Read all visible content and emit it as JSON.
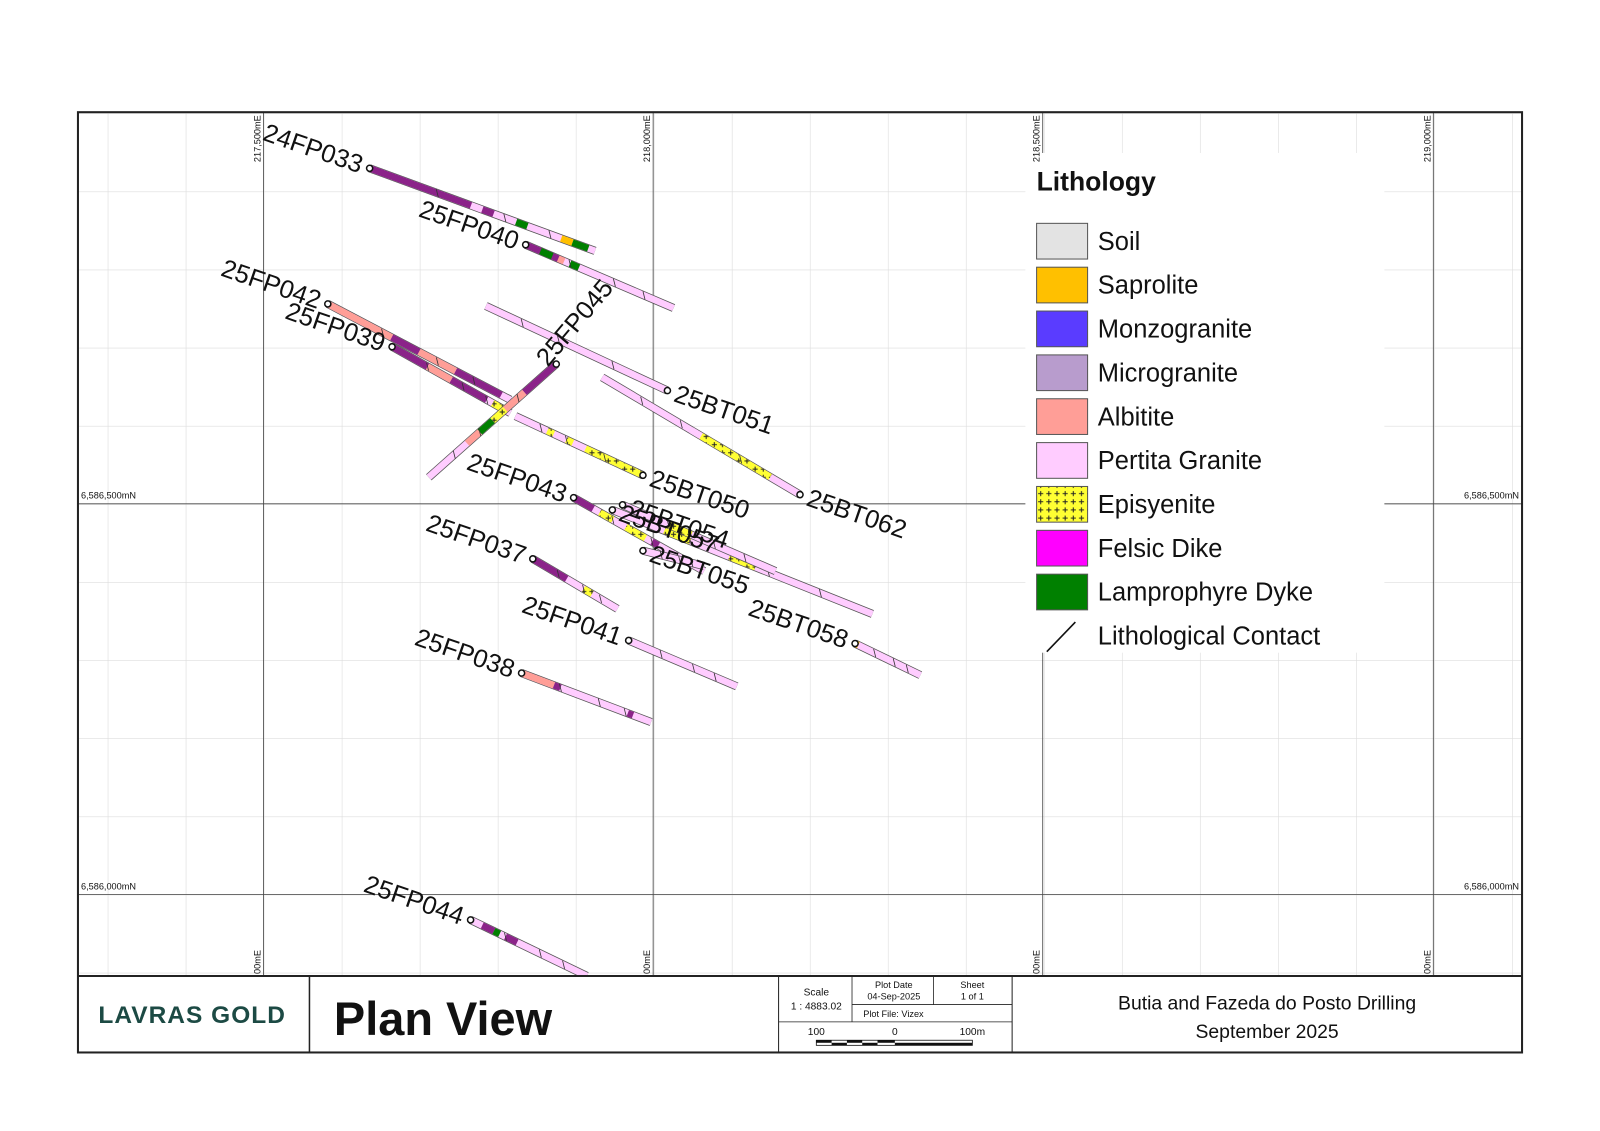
{
  "map": {
    "holes": [
      "24FP033",
      "25FP040",
      "25FP042",
      "25FP039",
      "25FP045",
      "25BT051",
      "25BT062",
      "25BT050",
      "25FP043",
      "25BT057",
      "25BT054",
      "25FP037",
      "25BT055",
      "25BT058",
      "25FP041",
      "25FP038",
      "25FP044"
    ],
    "grid_labels": {
      "easting_top": [
        "217,500mE",
        "218,000mE",
        "218,500mE",
        "219,000mE"
      ],
      "easting_bottom": [
        "00mE",
        "00mE",
        "00mE",
        "00mE"
      ],
      "northing_left": [
        "6,586,500mN",
        "6,586,000mN"
      ],
      "northing_right": [
        "6,586,500mN",
        "6,586,000mN"
      ]
    }
  },
  "legend": {
    "title": "Lithology",
    "items": [
      {
        "label": "Soil",
        "color": "#e3e3e3"
      },
      {
        "label": "Saprolite",
        "color": "#ffc000"
      },
      {
        "label": "Monzogranite",
        "color": "#5a3cff"
      },
      {
        "label": "Microgranite",
        "color": "#b89ccd"
      },
      {
        "label": "Albitite",
        "color": "#ff9e97"
      },
      {
        "label": "Pertita Granite",
        "color": "#ffccff"
      },
      {
        "label": "Episyenite",
        "color": "#ffff33"
      },
      {
        "label": "Felsic Dike",
        "color": "#ff00ff"
      },
      {
        "label": "Lamprophyre Dyke",
        "color": "#008000"
      },
      {
        "label": "Lithological Contact"
      }
    ]
  },
  "title_block": {
    "logo": "LAVRAS GOLD",
    "heading": "Plan View",
    "scale_label": "Scale",
    "scale_value": "1 : 4883.02",
    "plot_date_label": "Plot Date",
    "plot_date": "04-Sep-2025",
    "sheet_label": "Sheet",
    "sheet": "1 of 1",
    "plot_file": "Plot File: Vizex",
    "bar_labels": [
      "100",
      "0",
      "100m"
    ],
    "project": "Butia and Fazeda do Posto Drilling",
    "date": "September 2025"
  }
}
